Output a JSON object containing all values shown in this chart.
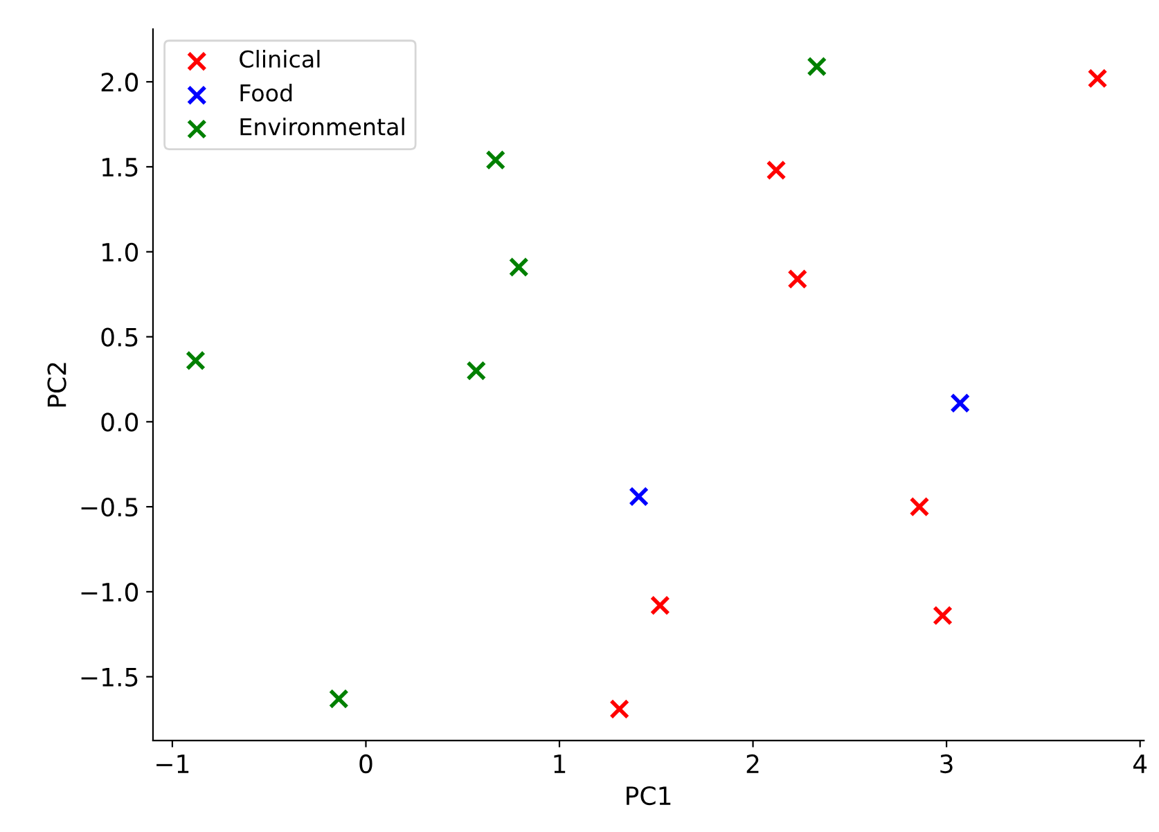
{
  "chart_data": {
    "type": "scatter",
    "xlabel": "PC1",
    "ylabel": "PC2",
    "marker": "cross",
    "legend": "top left",
    "grid": false,
    "xlim": [
      -1.1,
      4.02
    ],
    "ylim": [
      -1.875,
      2.31
    ],
    "xticks": [
      -1,
      0,
      1,
      2,
      3,
      4
    ],
    "yticks": [
      -1.5,
      {
        "value": -1,
        "label": "−1.0"
      },
      -0.5,
      {
        "value": 0,
        "label": "0.0"
      },
      0.5,
      {
        "value": 1,
        "label": "1.0"
      },
      1.5,
      {
        "value": 2,
        "label": "2.0"
      }
    ],
    "series": [
      {
        "name": "Clinical",
        "color": "#ff0000",
        "x": [
          3.78,
          2.12,
          2.23,
          2.86,
          2.98,
          1.52,
          1.31
        ],
        "values": [
          2.02,
          1.48,
          0.84,
          -0.5,
          -1.14,
          -1.08,
          -1.69
        ]
      },
      {
        "name": "Food",
        "color": "#0000ff",
        "x": [
          1.41,
          3.07
        ],
        "values": [
          -0.44,
          0.11
        ]
      },
      {
        "name": "Environmental",
        "color": "#008000",
        "x": [
          2.33,
          0.67,
          0.79,
          0.57,
          -0.88,
          -0.14
        ],
        "values": [
          2.09,
          1.54,
          0.91,
          0.3,
          0.36,
          -1.63
        ]
      }
    ]
  }
}
